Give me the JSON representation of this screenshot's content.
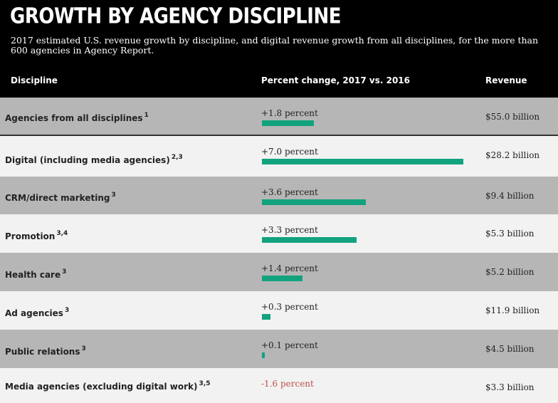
{
  "header": {
    "title": "GROWTH BY AGENCY DISCIPLINE",
    "subtitle": "2017 estimated U.S. revenue growth by discipline, and digital revenue growth from all disciplines, for the more than 600 agencies in Agency Report."
  },
  "columns": {
    "discipline": "Discipline",
    "percent": "Percent change, 2017 vs. 2016",
    "revenue": "Revenue"
  },
  "chart_data": {
    "type": "bar",
    "orientation": "horizontal",
    "title": "GROWTH BY AGENCY DISCIPLINE",
    "xlim": [
      0,
      7.0
    ],
    "colors": {
      "bar": "#12a37e",
      "negative_text": "#c0504d"
    },
    "rows": [
      {
        "discipline": "Agencies from all disciplines",
        "notes": "1",
        "value": 1.8,
        "label": "+1.8 percent",
        "revenue": "$55.0 billion"
      },
      {
        "discipline": "Digital (including media agencies)",
        "notes": "2,3",
        "value": 7.0,
        "label": "+7.0 percent",
        "revenue": "$28.2 billion"
      },
      {
        "discipline": "CRM/direct marketing",
        "notes": "3",
        "value": 3.6,
        "label": "+3.6 percent",
        "revenue": "$9.4 billion"
      },
      {
        "discipline": "Promotion",
        "notes": "3,4",
        "value": 3.3,
        "label": "+3.3 percent",
        "revenue": "$5.3 billion"
      },
      {
        "discipline": "Health care",
        "notes": "3",
        "value": 1.4,
        "label": "+1.4 percent",
        "revenue": "$5.2 billion"
      },
      {
        "discipline": "Ad agencies",
        "notes": "3",
        "value": 0.3,
        "label": "+0.3 percent",
        "revenue": "$11.9 billion"
      },
      {
        "discipline": "Public relations",
        "notes": "3",
        "value": 0.1,
        "label": "+0.1 percent",
        "revenue": "$4.5 billion"
      },
      {
        "discipline": "Media agencies (excluding digital work)",
        "notes": "3,5",
        "value": -1.6,
        "label": "-1.6 percent",
        "revenue": "$3.3 billion"
      }
    ]
  }
}
